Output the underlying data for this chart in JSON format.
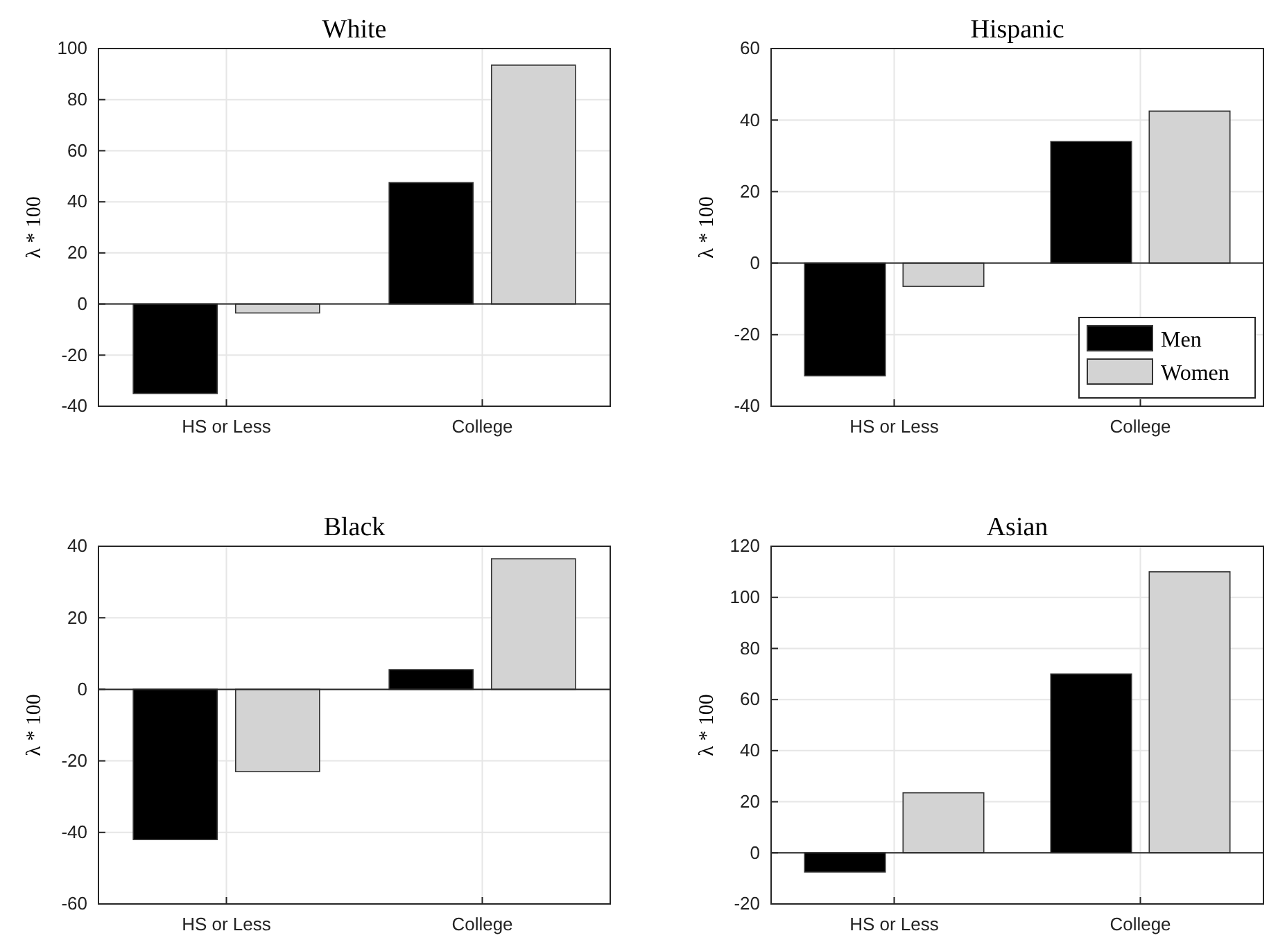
{
  "chart_data": [
    {
      "type": "bar",
      "title": "White",
      "ylabel": "λ * 100",
      "categories": [
        "HS or Less",
        "College"
      ],
      "series": [
        {
          "color": "#000000",
          "values": [
            -35,
            47.5
          ]
        },
        {
          "color": "#d3d3d3",
          "values": [
            -3.5,
            93.5
          ]
        }
      ],
      "ylim": [
        -40,
        100
      ],
      "yticks": [
        -40,
        -20,
        0,
        20,
        40,
        60,
        80,
        100
      ],
      "grid": true
    },
    {
      "type": "bar",
      "title": "Hispanic",
      "ylabel": "λ * 100",
      "categories": [
        "HS or Less",
        "College"
      ],
      "series": [
        {
          "name": "Men",
          "color": "#000000",
          "values": [
            -31.5,
            34
          ]
        },
        {
          "name": "Women",
          "color": "#d3d3d3",
          "values": [
            -6.5,
            42.5
          ]
        }
      ],
      "ylim": [
        -40,
        60
      ],
      "yticks": [
        -40,
        -20,
        0,
        20,
        40,
        60
      ],
      "grid": true,
      "legend": "bottom right"
    },
    {
      "type": "bar",
      "title": "Black",
      "ylabel": "λ * 100",
      "categories": [
        "HS or Less",
        "College"
      ],
      "series": [
        {
          "color": "#000000",
          "values": [
            -42,
            5.5
          ]
        },
        {
          "color": "#d3d3d3",
          "values": [
            -23,
            36.5
          ]
        }
      ],
      "ylim": [
        -60,
        40
      ],
      "yticks": [
        -60,
        -40,
        -20,
        0,
        20,
        40
      ],
      "grid": true
    },
    {
      "type": "bar",
      "title": "Asian",
      "ylabel": "λ * 100",
      "categories": [
        "HS or Less",
        "College"
      ],
      "series": [
        {
          "color": "#000000",
          "values": [
            -7.5,
            70
          ]
        },
        {
          "color": "#d3d3d3",
          "values": [
            23.5,
            110
          ]
        }
      ],
      "ylim": [
        -20,
        120
      ],
      "yticks": [
        -20,
        0,
        20,
        40,
        60,
        80,
        100,
        120
      ],
      "grid": true
    }
  ]
}
